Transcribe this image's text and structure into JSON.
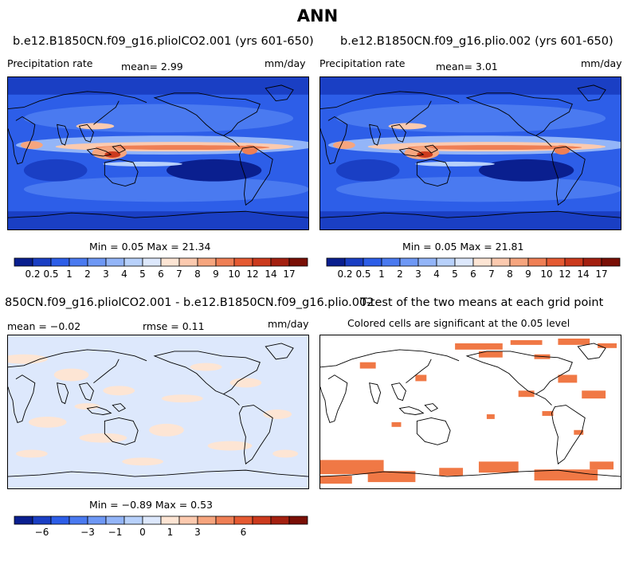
{
  "main_title": "ANN",
  "panels": [
    {
      "title": "b.e12.B1850CN.f09_g16.pliolCO2.001 (yrs 601-650)",
      "left_label": "Precipitation rate",
      "stat_text": "mean=   2.99",
      "units": "mm/day",
      "minmax": "Min =    0.05 Max =   21.34"
    },
    {
      "title": "b.e12.B1850CN.f09_g16.plio.002 (yrs 601-650)",
      "left_label": "Precipitation rate",
      "stat_text": "mean=   3.01",
      "units": "mm/day",
      "minmax": "Min =    0.05 Max =   21.81"
    },
    {
      "title": "850CN.f09_g16.pliolCO2.001 - b.e12.B1850CN.f09_g16.plio.002",
      "left_label": "mean =  −0.02",
      "stat_text": "rmse =    0.11",
      "units": "mm/day",
      "minmax": "Min =  −0.89 Max =    0.53"
    },
    {
      "title": "T-test of the two means at each grid point",
      "subtitle": "Colored cells are significant at the 0.05 level"
    }
  ],
  "colorbars": {
    "precip": {
      "colors": [
        "#0a1f8f",
        "#1a3fc4",
        "#2d5ee8",
        "#4a7af0",
        "#6e98f5",
        "#93b5f8",
        "#b8d1fb",
        "#dde8fc",
        "#fde5d4",
        "#fccaaf",
        "#f6a57e",
        "#ef7f55",
        "#e55a32",
        "#cc3a1d",
        "#a42010",
        "#7a0f06"
      ],
      "labels": [
        "0.2",
        "0.5",
        "1",
        "2",
        "3",
        "4",
        "5",
        "6",
        "7",
        "8",
        "9",
        "10",
        "12",
        "14",
        "17"
      ]
    },
    "diff": {
      "colors": [
        "#0a1f8f",
        "#1a3fc4",
        "#2d5ee8",
        "#4a7af0",
        "#6e98f5",
        "#93b5f8",
        "#b8d1fb",
        "#dde8fc",
        "#fde5d4",
        "#fccaaf",
        "#f6a57e",
        "#ef7f55",
        "#e55a32",
        "#cc3a1d",
        "#a42010",
        "#7a0f06"
      ],
      "labels": [
        "−6",
        "−3",
        "−1",
        "0",
        "1",
        "3",
        "6"
      ],
      "label_positions": [
        1.5,
        4,
        5.5,
        7,
        8.5,
        10,
        12.5
      ]
    }
  },
  "colors": {
    "ocean_blue": "#3b6ee6",
    "light_blue": "#b8d1fb",
    "diff_bg": "#dde8fc",
    "diff_pos": "#fde5d4",
    "signif": "#f07845"
  },
  "chart_data": [
    {
      "type": "heatmap",
      "title": "b.e12.B1850CN.f09_g16.pliolCO2.001 (yrs 601-650)",
      "variable": "Precipitation rate",
      "units": "mm/day",
      "mean": 2.99,
      "min": 0.05,
      "max": 21.34,
      "levels": [
        0.2,
        0.5,
        1,
        2,
        3,
        4,
        5,
        6,
        7,
        8,
        9,
        10,
        12,
        14,
        17
      ]
    },
    {
      "type": "heatmap",
      "title": "b.e12.B1850CN.f09_g16.plio.002 (yrs 601-650)",
      "variable": "Precipitation rate",
      "units": "mm/day",
      "mean": 3.01,
      "min": 0.05,
      "max": 21.81,
      "levels": [
        0.2,
        0.5,
        1,
        2,
        3,
        4,
        5,
        6,
        7,
        8,
        9,
        10,
        12,
        14,
        17
      ]
    },
    {
      "type": "heatmap",
      "title": "850CN.f09_g16.pliolCO2.001 - b.e12.B1850CN.f09_g16.plio.002",
      "units": "mm/day",
      "mean": -0.02,
      "rmse": 0.11,
      "min": -0.89,
      "max": 0.53,
      "tick_labels": [
        -6,
        -3,
        -1,
        0,
        1,
        3,
        6
      ]
    },
    {
      "type": "heatmap",
      "title": "T-test of the two means at each grid point",
      "subtitle": "Colored cells are significant at the 0.05 level"
    }
  ]
}
